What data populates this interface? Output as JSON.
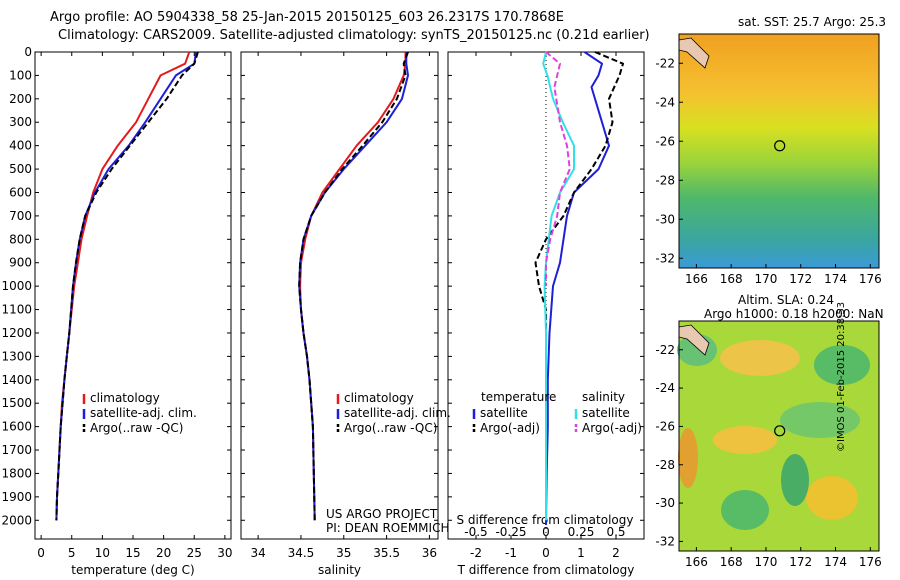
{
  "header": {
    "line1": "Argo profile: AO 5904338_58 25-Jan-2015 20150125_603 26.2317S 170.7868E",
    "line2": "Climatology: CARS2009. Satellite-adjusted climatology: synTS_20150125.nc (0.21d earlier)"
  },
  "project": {
    "line1": "US ARGO PROJECT",
    "line2": "PI: DEAN ROEMMICH"
  },
  "stamp": "©IMOS 01-Feb-2015 20:38:53",
  "colors": {
    "climatology": "#e41a1c",
    "satellite": "#1f1fd6",
    "argo": "#000000",
    "cyan": "#33e0e8",
    "magenta": "#e040e0"
  },
  "chart_data": [
    {
      "type": "line",
      "xlabel": "temperature (deg C)",
      "xlim": [
        -1,
        31
      ],
      "xticks": [
        0,
        5,
        10,
        15,
        20,
        25,
        30
      ],
      "ylim": [
        2080,
        0
      ],
      "yticks": [
        0,
        100,
        200,
        300,
        400,
        500,
        600,
        700,
        800,
        900,
        1000,
        1100,
        1200,
        1300,
        1400,
        1500,
        1600,
        1700,
        1800,
        1900,
        2000
      ],
      "legend": [
        "climatology",
        "satellite-adj. clim.",
        "Argo(..raw -QC)"
      ],
      "series": [
        {
          "name": "climatology",
          "color": "#e41a1c",
          "dash": false,
          "x": [
            24.2,
            23.5,
            19.5,
            17.5,
            15.5,
            12.5,
            10.0,
            8.5,
            7.5,
            6.6,
            6.0,
            5.4,
            4.6,
            4.2,
            3.8,
            3.4,
            3.2,
            3.0,
            2.8,
            2.6,
            2.5
          ],
          "y": [
            0,
            50,
            100,
            200,
            300,
            400,
            500,
            600,
            700,
            800,
            900,
            1000,
            1200,
            1300,
            1400,
            1500,
            1600,
            1700,
            1800,
            1900,
            2000
          ]
        },
        {
          "name": "satellite-adj. clim.",
          "color": "#1f1fd6",
          "dash": false,
          "x": [
            25.3,
            25.0,
            22.0,
            19.5,
            17.0,
            14.3,
            11.0,
            8.8,
            7.2,
            6.3,
            5.7,
            5.2,
            4.6,
            4.2,
            3.8,
            3.5,
            3.2,
            3.0,
            2.8,
            2.6,
            2.5
          ],
          "y": [
            0,
            50,
            100,
            200,
            300,
            400,
            500,
            600,
            700,
            800,
            900,
            1000,
            1200,
            1300,
            1400,
            1500,
            1600,
            1700,
            1800,
            1900,
            2000
          ]
        },
        {
          "name": "Argo(..raw -QC)",
          "color": "#000000",
          "dash": true,
          "x": [
            25.6,
            25.0,
            23.0,
            20.5,
            17.5,
            14.5,
            11.5,
            9.0,
            7.2,
            6.3,
            5.7,
            5.2,
            4.6,
            4.2,
            3.8,
            3.5,
            3.2,
            3.0,
            2.8,
            2.6,
            2.5
          ],
          "y": [
            0,
            50,
            100,
            200,
            300,
            400,
            500,
            600,
            700,
            800,
            900,
            1000,
            1200,
            1300,
            1400,
            1500,
            1600,
            1700,
            1800,
            1900,
            2000
          ]
        }
      ]
    },
    {
      "type": "line",
      "xlabel": "salinity",
      "xlim": [
        33.8,
        36.1
      ],
      "xticks": [
        34,
        34.5,
        35,
        35.5,
        36
      ],
      "ylim": [
        2080,
        0
      ],
      "legend": [
        "climatology",
        "satellite-adj. clim.",
        "Argo(..raw -QC)"
      ],
      "series": [
        {
          "name": "climatology",
          "color": "#e41a1c",
          "dash": false,
          "x": [
            35.72,
            35.72,
            35.7,
            35.58,
            35.4,
            35.15,
            34.95,
            34.75,
            34.62,
            34.55,
            34.5,
            34.49,
            34.5,
            34.53,
            34.57,
            34.6,
            34.62,
            34.64,
            34.65,
            34.66
          ],
          "y": [
            0,
            50,
            100,
            200,
            300,
            400,
            500,
            600,
            700,
            800,
            900,
            1000,
            1100,
            1200,
            1300,
            1400,
            1500,
            1600,
            1800,
            2000
          ]
        },
        {
          "name": "satellite-adj. clim.",
          "color": "#1f1fd6",
          "dash": false,
          "x": [
            35.73,
            35.73,
            35.75,
            35.68,
            35.5,
            35.25,
            35.0,
            34.78,
            34.62,
            34.53,
            34.49,
            34.48,
            34.5,
            34.53,
            34.57,
            34.6,
            34.62,
            34.64,
            34.65,
            34.66
          ],
          "y": [
            0,
            50,
            100,
            200,
            300,
            400,
            500,
            600,
            700,
            800,
            900,
            1000,
            1100,
            1200,
            1300,
            1400,
            1500,
            1600,
            1800,
            2000
          ]
        },
        {
          "name": "Argo(..raw -QC)",
          "color": "#000000",
          "dash": true,
          "x": [
            35.75,
            35.7,
            35.72,
            35.62,
            35.45,
            35.22,
            34.98,
            34.78,
            34.62,
            34.53,
            34.49,
            34.48,
            34.5,
            34.53,
            34.57,
            34.6,
            34.62,
            34.64,
            34.65,
            34.66
          ],
          "y": [
            0,
            50,
            100,
            200,
            300,
            400,
            500,
            600,
            700,
            800,
            900,
            1000,
            1100,
            1200,
            1300,
            1400,
            1500,
            1600,
            1800,
            2000
          ]
        }
      ]
    },
    {
      "type": "line",
      "xlabel": "T difference from climatology",
      "x2label": "S difference from climatology",
      "xlim": [
        -2.8,
        2.8
      ],
      "xticks": [
        -2,
        -1,
        0,
        1,
        2
      ],
      "x2lim": [
        -0.7,
        0.7
      ],
      "x2ticks": [
        -0.5,
        -0.25,
        0,
        0.25,
        0.5
      ],
      "ylim": [
        2080,
        0
      ],
      "legend": [
        "temperature",
        "satellite",
        "Argo(-adj)",
        "salinity",
        "satellite",
        "Argo(-adj)"
      ],
      "series": [
        {
          "name": "satellite",
          "group": "temperature",
          "color": "#1f1fd6",
          "dash": false,
          "x": [
            1.1,
            1.6,
            1.5,
            1.3,
            1.6,
            1.8,
            1.5,
            0.8,
            0.6,
            0.5,
            0.4,
            0.2,
            0.1,
            0.05,
            0.05,
            0.02,
            0.0,
            0.0
          ],
          "y": [
            0,
            50,
            100,
            150,
            300,
            400,
            500,
            600,
            700,
            800,
            900,
            1000,
            1200,
            1400,
            1600,
            1800,
            2000,
            2020
          ]
        },
        {
          "name": "Argo(-adj)",
          "group": "temperature",
          "color": "#000000",
          "dash": true,
          "x": [
            1.4,
            2.2,
            2.1,
            1.8,
            1.9,
            1.7,
            1.3,
            0.8,
            0.5,
            0.0,
            -0.3,
            -0.2,
            0.0,
            0.0,
            0.0,
            0.0,
            0.0
          ],
          "y": [
            0,
            50,
            100,
            200,
            300,
            400,
            500,
            600,
            700,
            800,
            900,
            1000,
            1100,
            1200,
            1400,
            1700,
            2000
          ]
        },
        {
          "name": "satellite",
          "group": "salinity",
          "color": "#33e0e8",
          "dash": false,
          "x": [
            0.0,
            -0.02,
            0.01,
            0.05,
            0.12,
            0.2,
            0.2,
            0.1,
            0.04,
            0.02,
            0.0,
            -0.01,
            0.0,
            0.0,
            0.0,
            0.0
          ],
          "y": [
            0,
            50,
            100,
            200,
            300,
            400,
            500,
            600,
            700,
            800,
            900,
            1000,
            1200,
            1400,
            1700,
            2000
          ]
        },
        {
          "name": "Argo(-adj)",
          "group": "salinity",
          "color": "#e040e0",
          "dash": true,
          "x": [
            0.0,
            0.1,
            0.06,
            0.1,
            0.15,
            0.17,
            0.1,
            0.08,
            0.03,
            0.0,
            0.0
          ],
          "y": [
            0,
            50,
            150,
            300,
            400,
            500,
            600,
            700,
            800,
            900,
            1000
          ]
        }
      ]
    },
    {
      "type": "heatmap",
      "title": "sat. SST: 25.7  Argo: 25.3",
      "xlim": [
        165,
        176.5
      ],
      "xticks": [
        166,
        168,
        170,
        172,
        174,
        176
      ],
      "ylim": [
        -32.5,
        -20.5
      ],
      "yticks": [
        -22,
        -24,
        -26,
        -28,
        -30,
        -32
      ],
      "marker": {
        "lon": 170.79,
        "lat": -26.23
      }
    },
    {
      "type": "heatmap",
      "title_line1": "Altim. SLA: 0.24",
      "title_line2": "Argo h1000: 0.18 h2000: NaN",
      "xlim": [
        165,
        176.5
      ],
      "xticks": [
        166,
        168,
        170,
        172,
        174,
        176
      ],
      "ylim": [
        -32.5,
        -20.5
      ],
      "yticks": [
        -22,
        -24,
        -26,
        -28,
        -30,
        -32
      ],
      "marker": {
        "lon": 170.79,
        "lat": -26.23
      }
    }
  ]
}
